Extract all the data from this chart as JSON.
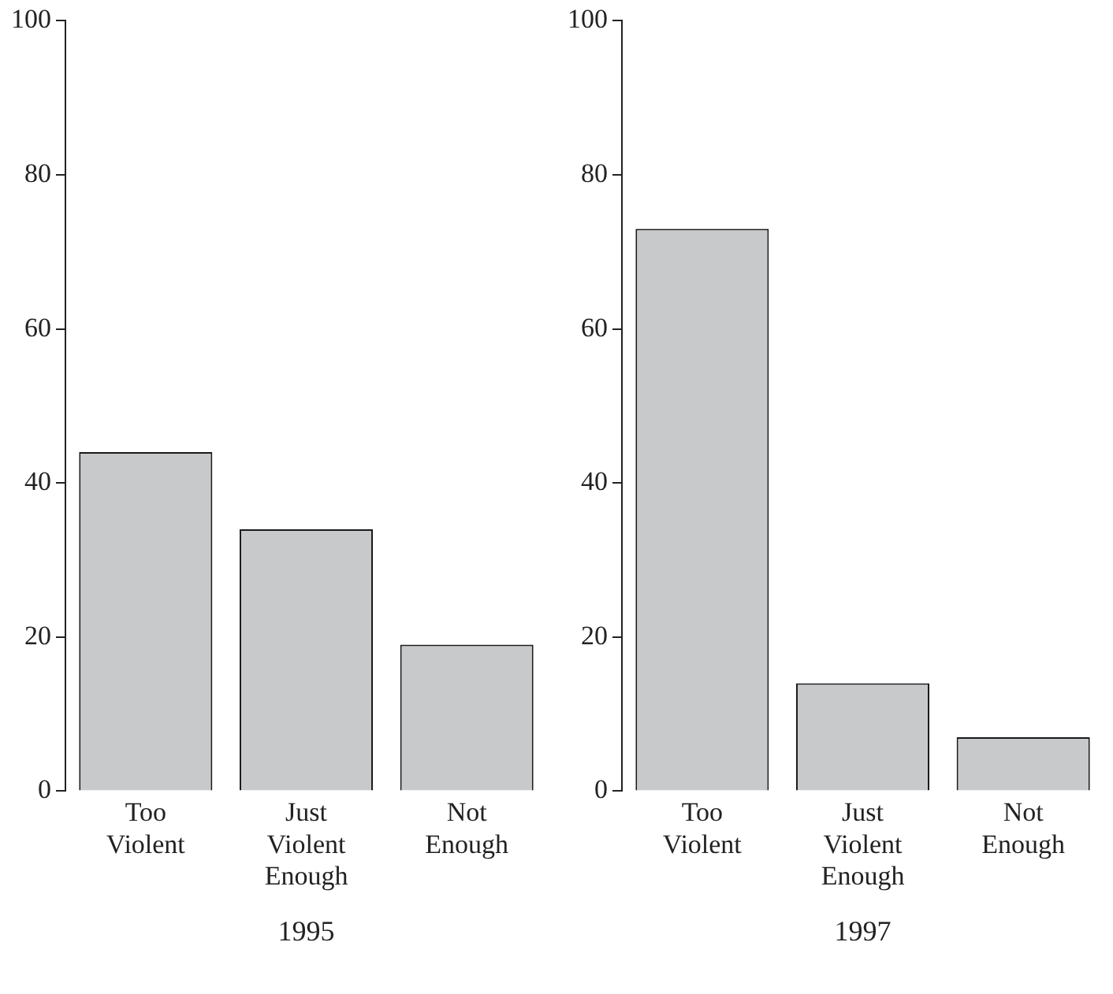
{
  "chart_data": [
    {
      "type": "bar",
      "xlabel": "1995",
      "categories": [
        "Too Violent",
        "Just Violent Enough",
        "Not Enough"
      ],
      "values": [
        44,
        34,
        19
      ],
      "color": "#c8c9cb",
      "ylim": [
        0,
        100
      ],
      "yticks": [
        0,
        20,
        40,
        60,
        80,
        100
      ],
      "grid": false,
      "legend": false
    },
    {
      "type": "bar",
      "xlabel": "1997",
      "categories": [
        "Too Violent",
        "Just Violent Enough",
        "Not Enough"
      ],
      "values": [
        73,
        14,
        7
      ],
      "color": "#c8c9cb",
      "ylim": [
        0,
        100
      ],
      "yticks": [
        0,
        20,
        40,
        60,
        80,
        100
      ],
      "grid": false,
      "legend": false
    }
  ]
}
